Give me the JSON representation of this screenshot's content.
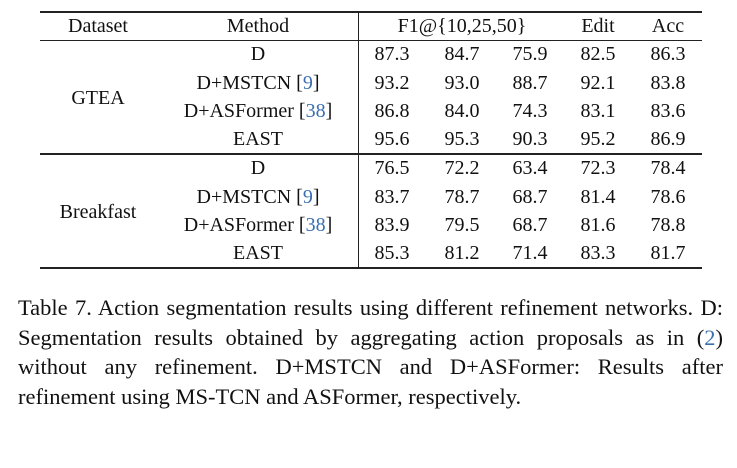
{
  "table": {
    "header": [
      "Dataset",
      "Method",
      "F1@{10,25,50}",
      "Edit",
      "Acc"
    ],
    "groups": [
      {
        "dataset": "GTEA",
        "rows": [
          {
            "method": [
              "D"
            ],
            "values": [
              "87.3",
              "84.7",
              "75.9",
              "82.5",
              "86.3"
            ]
          },
          {
            "method": [
              "D+MSTCN [",
              "9",
              "]"
            ],
            "values": [
              "93.2",
              "93.0",
              "88.7",
              "92.1",
              "83.8"
            ]
          },
          {
            "method": [
              "D+ASFormer [",
              "38",
              "]"
            ],
            "values": [
              "86.8",
              "84.0",
              "74.3",
              "83.1",
              "83.6"
            ]
          },
          {
            "method": [
              "EAST"
            ],
            "values": [
              "95.6",
              "95.3",
              "90.3",
              "95.2",
              "86.9"
            ]
          }
        ]
      },
      {
        "dataset": "Breakfast",
        "rows": [
          {
            "method": [
              "D"
            ],
            "values": [
              "76.5",
              "72.2",
              "63.4",
              "72.3",
              "78.4"
            ]
          },
          {
            "method": [
              "D+MSTCN [",
              "9",
              "]"
            ],
            "values": [
              "83.7",
              "78.7",
              "68.7",
              "81.4",
              "78.6"
            ]
          },
          {
            "method": [
              "D+ASFormer [",
              "38",
              "]"
            ],
            "values": [
              "83.9",
              "79.5",
              "68.7",
              "81.6",
              "78.8"
            ]
          },
          {
            "method": [
              "EAST"
            ],
            "values": [
              "85.3",
              "81.2",
              "71.4",
              "83.3",
              "81.7"
            ]
          }
        ]
      }
    ]
  },
  "caption": [
    "Table 7.  Action segmentation results using different refinement networks.  D: Segmentation results obtained by aggregating action proposals as in (",
    "2",
    ") without any refinement.  D+MSTCN and D+ASFormer: Results after refinement using MS-TCN and ASFormer, respectively."
  ]
}
